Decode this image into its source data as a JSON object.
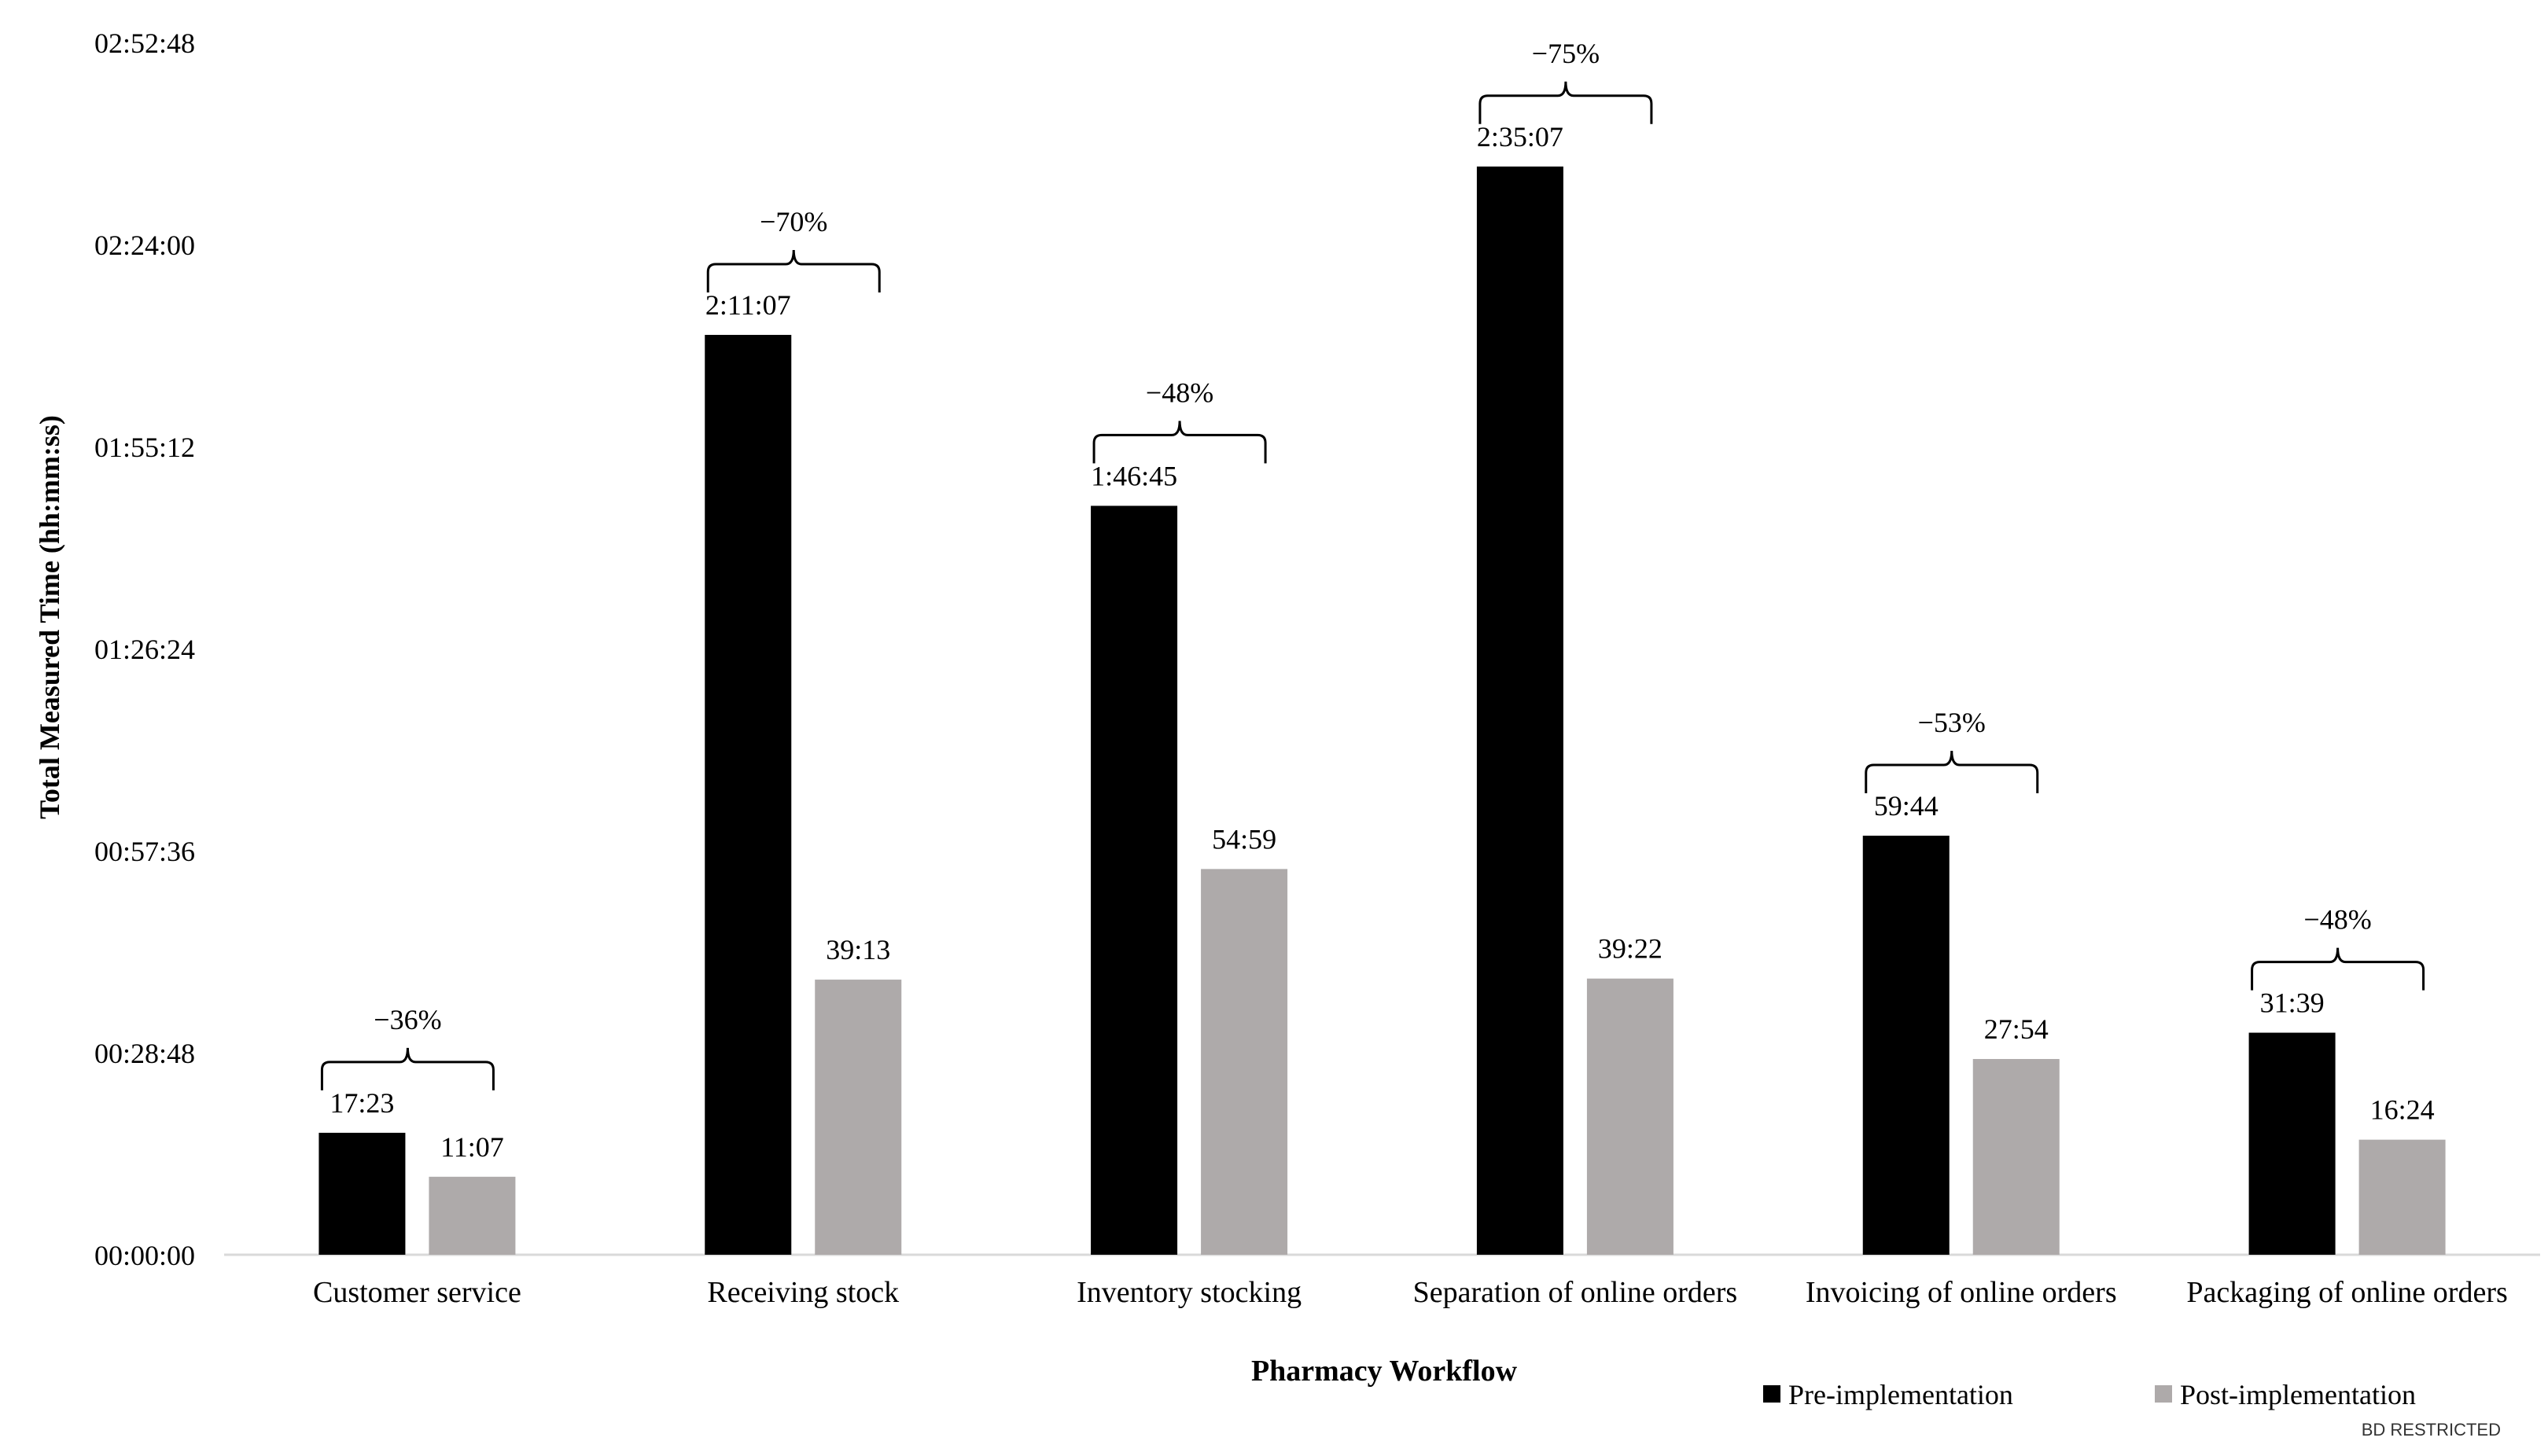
{
  "chart_data": {
    "type": "bar",
    "title": "",
    "xlabel": "Pharmacy Workflow",
    "ylabel": "Total Measured Time (hh:mm:ss)",
    "y_unit": "seconds",
    "ylim": [
      0,
      10368
    ],
    "y_ticks": [
      {
        "value": 0,
        "label": "00:00:00"
      },
      {
        "value": 1728,
        "label": "00:28:48"
      },
      {
        "value": 3456,
        "label": "00:57:36"
      },
      {
        "value": 5184,
        "label": "01:26:24"
      },
      {
        "value": 6912,
        "label": "01:55:12"
      },
      {
        "value": 8640,
        "label": "02:24:00"
      },
      {
        "value": 10368,
        "label": "02:52:48"
      }
    ],
    "categories": [
      "Customer service",
      "Receiving stock",
      "Inventory stocking",
      "Separation of online orders",
      "Invoicing of online orders",
      "Packaging of online orders"
    ],
    "series": [
      {
        "name": "Pre-implementation",
        "color": "#000000",
        "values": [
          1043,
          7867,
          6405,
          9307,
          3584,
          1899
        ],
        "labels": [
          "17:23",
          "2:11:07",
          "1:46:45",
          "2:35:07",
          "59:44",
          "31:39"
        ]
      },
      {
        "name": "Post-implementation",
        "color": "#aeaaaa",
        "values": [
          667,
          2353,
          3299,
          2362,
          1674,
          984
        ],
        "labels": [
          "11:07",
          "39:13",
          "54:59",
          "39:22",
          "27:54",
          "16:24"
        ]
      }
    ],
    "annotations": [
      "−36%",
      "−70%",
      "−48%",
      "−75%",
      "−53%",
      "−48%"
    ],
    "grid": false,
    "legend": "bottom-right"
  },
  "footer": {
    "classification": "BD RESTRICTED"
  }
}
